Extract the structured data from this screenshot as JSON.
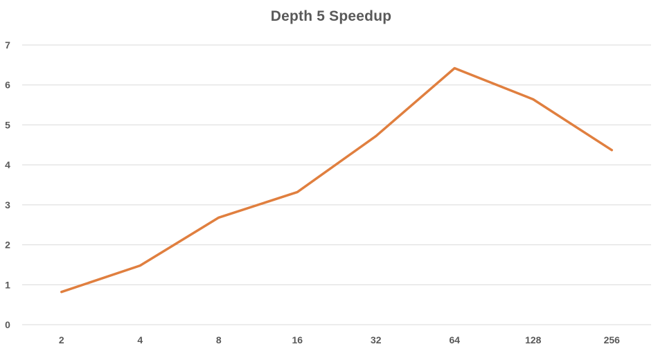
{
  "chart_data": {
    "type": "line",
    "title": "Depth 5 Speedup",
    "xlabel": "",
    "ylabel": "",
    "categories": [
      "2",
      "4",
      "8",
      "16",
      "32",
      "64",
      "128",
      "256"
    ],
    "series": [
      {
        "values": [
          0.82,
          1.48,
          2.68,
          3.32,
          4.72,
          6.42,
          5.64,
          4.37
        ]
      }
    ],
    "ylim": [
      0,
      7
    ],
    "yticks": [
      0,
      1,
      2,
      3,
      4,
      5,
      6,
      7
    ],
    "grid": true,
    "legend": "none",
    "colors": {
      "line": "#e07f3f",
      "grid": "#d9d9d9",
      "text": "#595959"
    }
  }
}
